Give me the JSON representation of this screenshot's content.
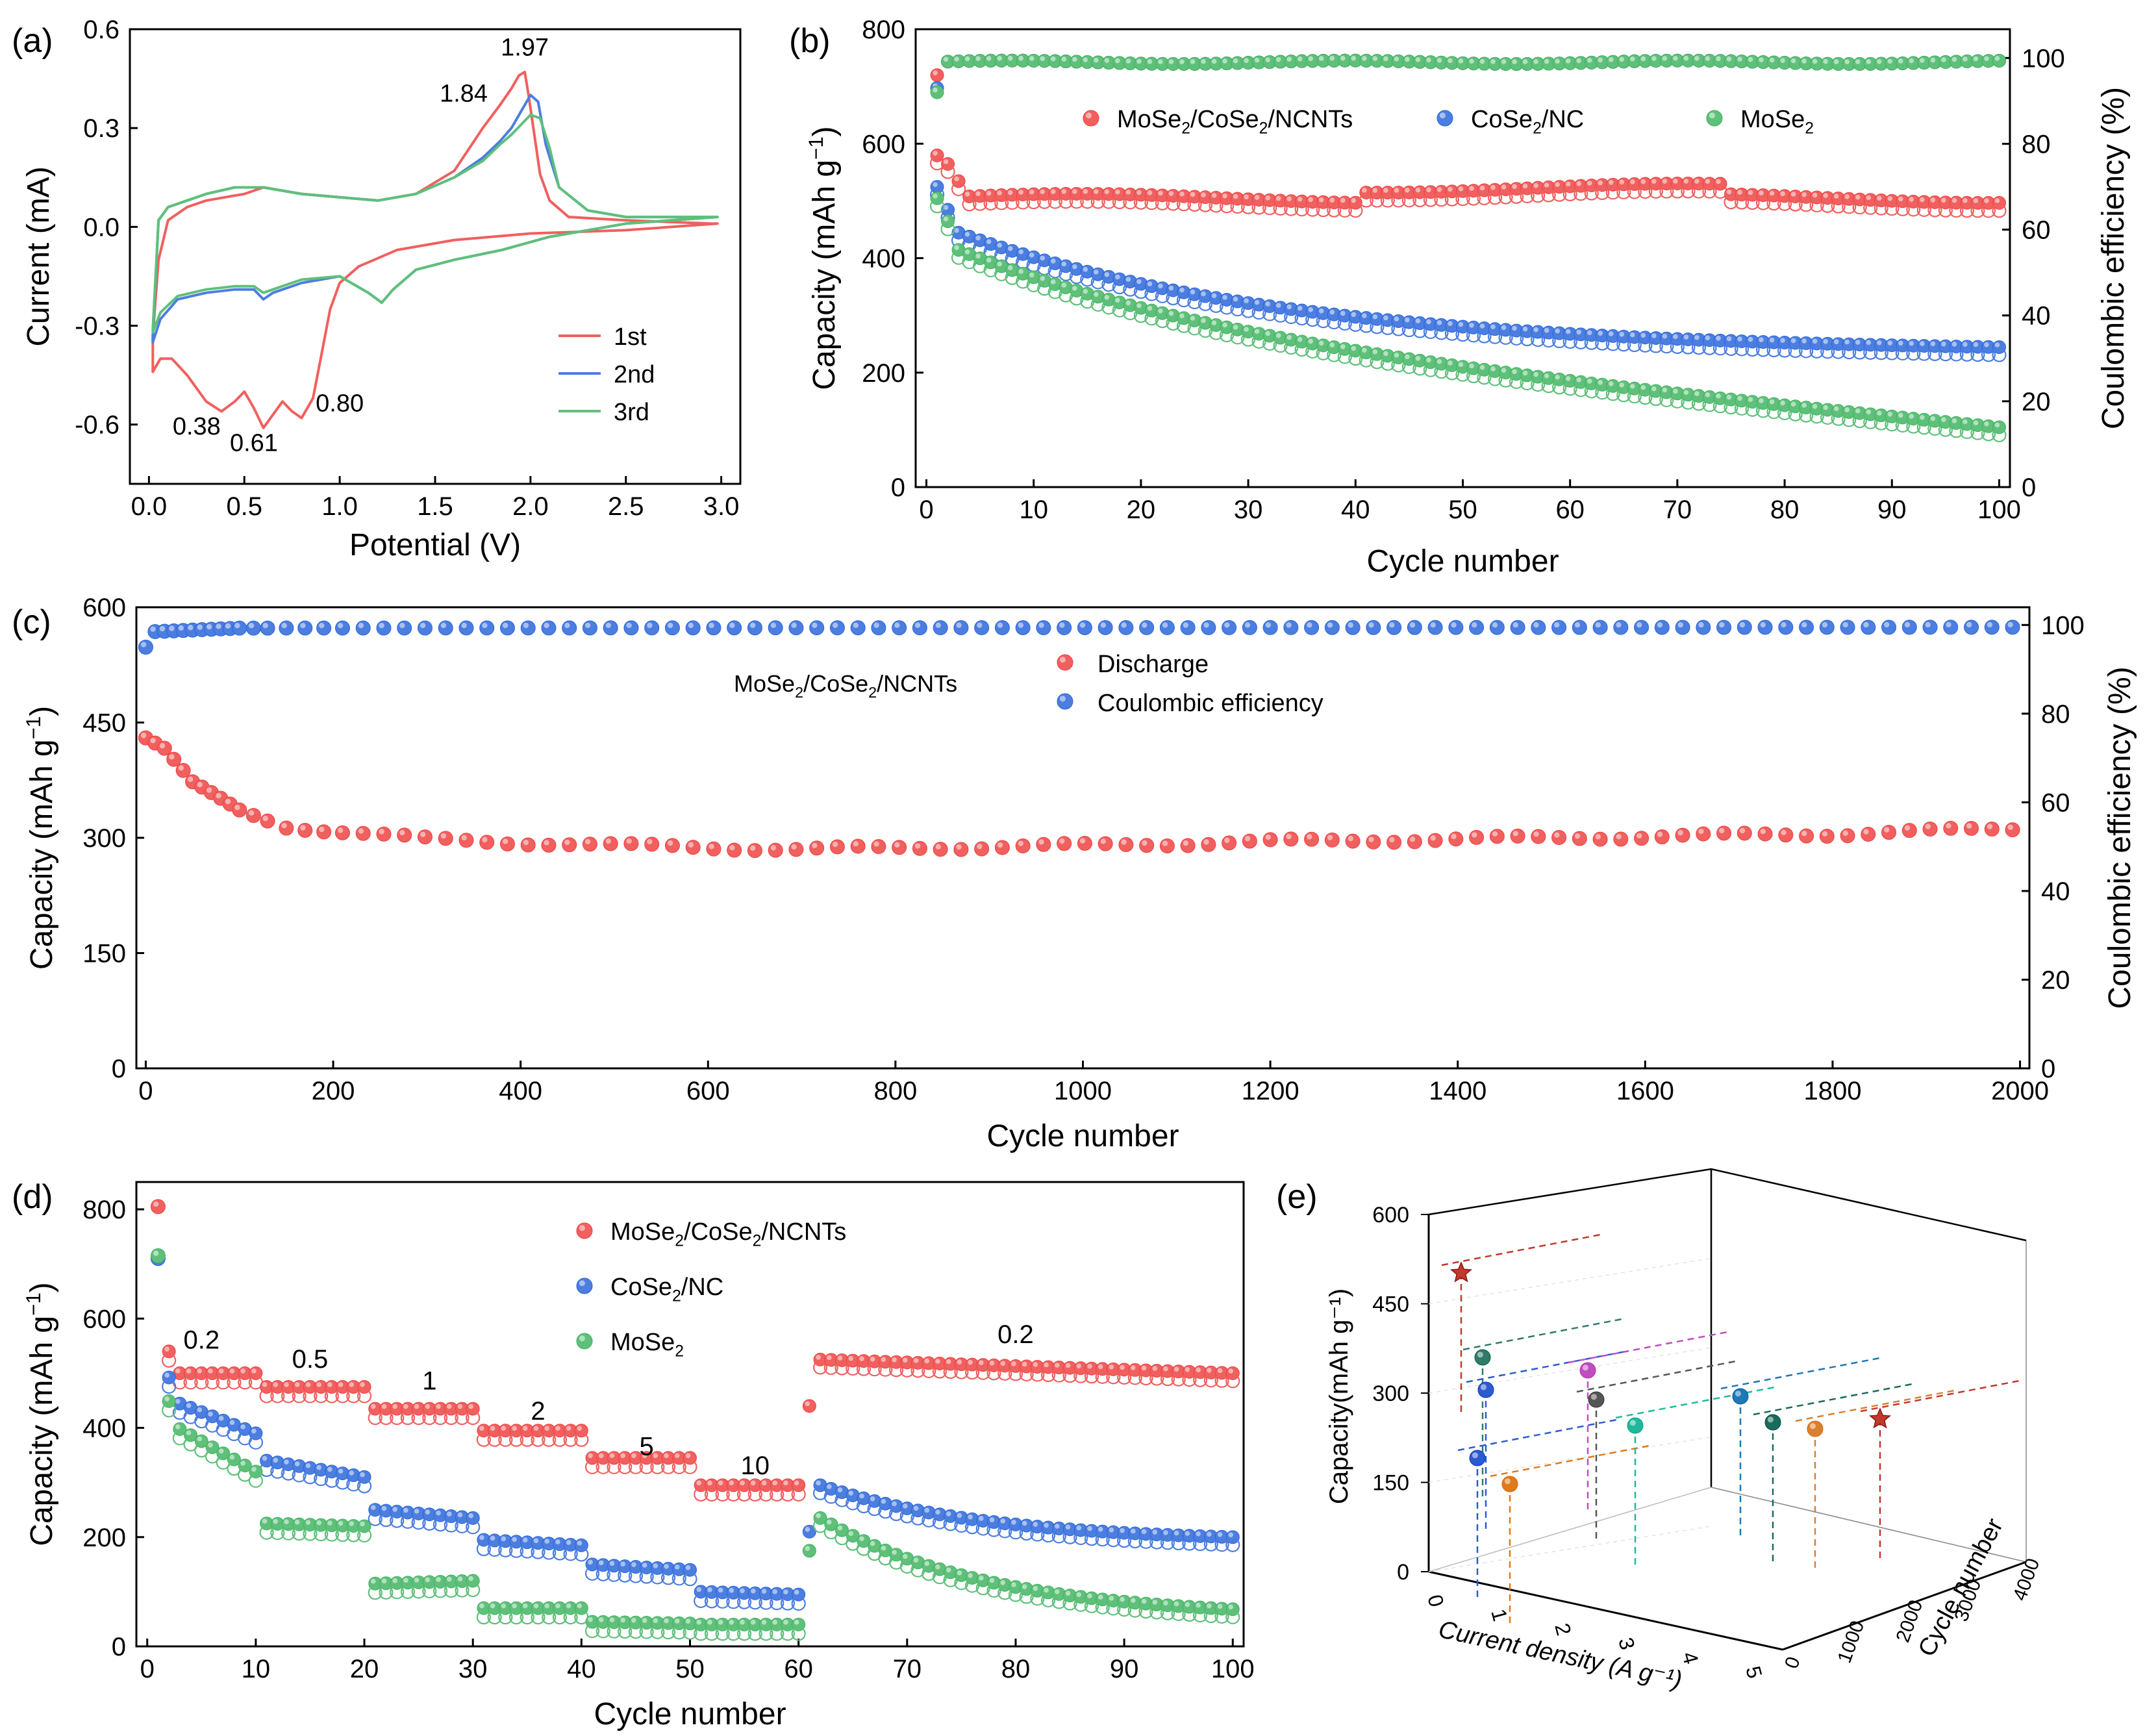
{
  "chart_data": [
    {
      "panel": "(a)",
      "type": "line",
      "xlabel": "Potential (V)",
      "ylabel": "Current (mA)",
      "xlim": [
        -0.1,
        3.1
      ],
      "ylim": [
        -0.78,
        0.6
      ],
      "xticks": [
        "0.0",
        "0.5",
        "1.0",
        "1.5",
        "2.0",
        "2.5",
        "3.0"
      ],
      "yticks": [
        "-0.6",
        "-0.3",
        "0.0",
        "0.3",
        "0.6"
      ],
      "legend_position": "bottom-right",
      "annotations": [
        {
          "text": "1.97",
          "x": 1.97,
          "y": 0.52
        },
        {
          "text": "1.84",
          "x": 1.65,
          "y": 0.38
        },
        {
          "text": "0.38",
          "x": 0.25,
          "y": -0.63
        },
        {
          "text": "0.61",
          "x": 0.55,
          "y": -0.68
        },
        {
          "text": "0.80",
          "x": 1.0,
          "y": -0.56
        }
      ],
      "series": [
        {
          "name": "1st",
          "color": "#f0605f",
          "x": [
            0.02,
            0.06,
            0.12,
            0.2,
            0.3,
            0.38,
            0.45,
            0.5,
            0.55,
            0.6,
            0.65,
            0.7,
            0.75,
            0.8,
            0.86,
            0.9,
            0.95,
            1.0,
            1.1,
            1.3,
            1.6,
            2.0,
            2.5,
            2.98,
            2.95,
            2.5,
            2.2,
            2.1,
            2.05,
            2.02,
            1.99,
            1.97,
            1.94,
            1.9,
            1.84,
            1.75,
            1.6,
            1.4,
            1.2,
            1.0,
            0.8,
            0.6,
            0.5,
            0.4,
            0.3,
            0.2,
            0.1,
            0.05,
            0.02
          ],
          "y": [
            -0.44,
            -0.4,
            -0.4,
            -0.45,
            -0.53,
            -0.56,
            -0.53,
            -0.5,
            -0.55,
            -0.61,
            -0.57,
            -0.53,
            -0.56,
            -0.58,
            -0.52,
            -0.4,
            -0.25,
            -0.17,
            -0.12,
            -0.07,
            -0.04,
            -0.02,
            -0.01,
            0.01,
            0.01,
            0.02,
            0.03,
            0.08,
            0.16,
            0.28,
            0.4,
            0.47,
            0.46,
            0.42,
            0.37,
            0.3,
            0.17,
            0.1,
            0.08,
            0.09,
            0.1,
            0.12,
            0.1,
            0.09,
            0.08,
            0.06,
            0.02,
            -0.1,
            -0.33
          ]
        },
        {
          "name": "2nd",
          "color": "#4c7ee0",
          "x": [
            0.02,
            0.06,
            0.15,
            0.3,
            0.45,
            0.55,
            0.6,
            0.65,
            0.8,
            1.0,
            1.15,
            1.22,
            1.28,
            1.4,
            1.6,
            1.85,
            2.1,
            2.5,
            2.98,
            2.95,
            2.5,
            2.3,
            2.15,
            2.08,
            2.04,
            2.0,
            1.95,
            1.9,
            1.84,
            1.75,
            1.6,
            1.4,
            1.2,
            1.0,
            0.8,
            0.6,
            0.45,
            0.3,
            0.2,
            0.1,
            0.05,
            0.02
          ],
          "y": [
            -0.35,
            -0.28,
            -0.22,
            -0.2,
            -0.19,
            -0.19,
            -0.22,
            -0.2,
            -0.17,
            -0.15,
            -0.2,
            -0.23,
            -0.19,
            -0.13,
            -0.1,
            -0.07,
            -0.03,
            0.01,
            0.03,
            0.03,
            0.03,
            0.05,
            0.12,
            0.25,
            0.38,
            0.4,
            0.35,
            0.3,
            0.26,
            0.21,
            0.15,
            0.1,
            0.08,
            0.09,
            0.1,
            0.12,
            0.12,
            0.1,
            0.08,
            0.06,
            0.02,
            -0.33
          ]
        },
        {
          "name": "3rd",
          "color": "#5fc07a",
          "x": [
            0.02,
            0.06,
            0.15,
            0.3,
            0.45,
            0.55,
            0.6,
            0.65,
            0.8,
            1.0,
            1.15,
            1.22,
            1.28,
            1.4,
            1.6,
            1.85,
            2.1,
            2.5,
            2.98,
            2.95,
            2.5,
            2.3,
            2.15,
            2.1,
            2.05,
            2.0,
            1.95,
            1.9,
            1.84,
            1.75,
            1.6,
            1.4,
            1.2,
            1.0,
            0.8,
            0.6,
            0.45,
            0.3,
            0.2,
            0.1,
            0.05,
            0.02
          ],
          "y": [
            -0.32,
            -0.26,
            -0.21,
            -0.19,
            -0.18,
            -0.18,
            -0.2,
            -0.19,
            -0.16,
            -0.15,
            -0.2,
            -0.23,
            -0.19,
            -0.13,
            -0.1,
            -0.07,
            -0.03,
            0.01,
            0.03,
            0.03,
            0.03,
            0.05,
            0.12,
            0.24,
            0.33,
            0.34,
            0.31,
            0.28,
            0.25,
            0.2,
            0.15,
            0.1,
            0.08,
            0.09,
            0.1,
            0.12,
            0.12,
            0.1,
            0.08,
            0.06,
            0.02,
            -0.31
          ]
        }
      ]
    },
    {
      "panel": "(b)",
      "type": "scatter",
      "xlabel": "Cycle number",
      "ylabel": "Capacity (mAh g⁻¹)",
      "y2label": "Coulombic efficiency (%)",
      "xlim": [
        -1,
        101
      ],
      "ylim": [
        0,
        800
      ],
      "y2lim": [
        0,
        106.7
      ],
      "xticks": [
        "0",
        "10",
        "20",
        "30",
        "40",
        "50",
        "60",
        "70",
        "80",
        "90",
        "100"
      ],
      "yticks": [
        "0",
        "200",
        "400",
        "600",
        "800"
      ],
      "y2ticks": [
        "0",
        "20",
        "40",
        "60",
        "80",
        "100"
      ],
      "legend_position": "top-center",
      "series": [
        {
          "name": "MoSe2/CoSe2/NCNTs",
          "color": "#f0605f",
          "first_cycles": [
            575,
            560,
            530
          ],
          "plateau": 500,
          "end_value": 500,
          "ce_start": 96,
          "ce_plateau": 99
        },
        {
          "name": "CoSe2/NC",
          "color": "#4c7ee0",
          "first_cycles": [
            520,
            480,
            440
          ],
          "plateau": 350,
          "end_value": 240,
          "ce_start": 93,
          "ce_plateau": 99
        },
        {
          "name": "MoSe2",
          "color": "#5fc07a",
          "first_cycles": [
            500,
            460,
            410
          ],
          "plateau": 340,
          "end_value": 100,
          "ce_start": 92,
          "ce_plateau": 99
        }
      ]
    },
    {
      "panel": "(c)",
      "type": "scatter",
      "xlabel": "Cycle number",
      "ylabel": "Capacity (mAh g⁻¹)",
      "y2label": "Coulombic efficiency (%)",
      "xlim": [
        -10,
        2010
      ],
      "ylim": [
        0,
        600
      ],
      "y2lim": [
        0,
        104
      ],
      "xticks": [
        "0",
        "200",
        "400",
        "600",
        "800",
        "1000",
        "1200",
        "1400",
        "1600",
        "1800",
        "2000"
      ],
      "yticks": [
        "0",
        "150",
        "300",
        "450",
        "600"
      ],
      "y2ticks": [
        "0",
        "20",
        "40",
        "60",
        "80",
        "100"
      ],
      "label": "MoSe2/CoSe2/NCNTs",
      "series": [
        {
          "name": "Discharge",
          "color": "#f0605f",
          "curve": [
            [
              0,
              430
            ],
            [
              20,
              415
            ],
            [
              50,
              370
            ],
            [
              100,
              335
            ],
            [
              150,
              315
            ],
            [
              300,
              298
            ],
            [
              500,
              290
            ],
            [
              700,
              285
            ],
            [
              1000,
              290
            ],
            [
              1200,
              295
            ],
            [
              1500,
              300
            ],
            [
              1800,
              305
            ],
            [
              2000,
              312
            ]
          ]
        },
        {
          "name": "Coulombic efficiency",
          "color": "#4c7ee0",
          "curve": [
            [
              0,
              95
            ],
            [
              10,
              98.5
            ],
            [
              100,
              99.3
            ],
            [
              2000,
              99.5
            ]
          ]
        }
      ]
    },
    {
      "panel": "(d)",
      "type": "scatter",
      "xlabel": "Cycle number",
      "ylabel": "Capacity (mAh g⁻¹)",
      "xlim": [
        -1,
        101
      ],
      "ylim": [
        0,
        850
      ],
      "xticks": [
        "0",
        "10",
        "20",
        "30",
        "40",
        "50",
        "60",
        "70",
        "80",
        "90",
        "100"
      ],
      "yticks": [
        "0",
        "200",
        "400",
        "600",
        "800"
      ],
      "rate_labels": [
        "0.2",
        "0.5",
        "1",
        "2",
        "5",
        "10",
        "0.2"
      ],
      "legend_position": "top-center",
      "series": [
        {
          "name": "MoSe2/CoSe2/NCNTs",
          "color": "#f0605f",
          "first": 805,
          "steps": [
            500,
            475,
            435,
            395,
            345,
            295
          ],
          "recovery": [
            525,
            500
          ],
          "sixtyone": 440
        },
        {
          "name": "CoSe2/NC",
          "color": "#4c7ee0",
          "first": 710,
          "steps": [
            [
              460,
              390
            ],
            [
              340,
              310
            ],
            [
              250,
              235
            ],
            [
              195,
              185
            ],
            [
              150,
              140
            ],
            [
              100,
              95
            ]
          ],
          "recovery": [
            295,
            200
          ],
          "sixtyone": 210
        },
        {
          "name": "MoSe2",
          "color": "#5fc07a",
          "first": 715,
          "steps": [
            [
              420,
              320
            ],
            [
              225,
              220
            ],
            [
              115,
              120
            ],
            [
              70,
              70
            ],
            [
              45,
              42
            ],
            [
              40,
              40
            ]
          ],
          "recovery": [
            235,
            68
          ],
          "sixtyone": 175
        }
      ]
    },
    {
      "panel": "(e)",
      "type": "scatter",
      "xlabel": "Current density (A g⁻¹)",
      "ylabel": "Capacity(mAh g⁻¹)",
      "zlabel": "Cycle number",
      "xticks": [
        "0",
        "1",
        "2",
        "3",
        "4",
        "5"
      ],
      "yticks": [
        "0",
        "150",
        "300",
        "450",
        "600"
      ],
      "zticks": [
        "0",
        "1000",
        "2000",
        "3000",
        "4000"
      ],
      "points": [
        {
          "name": "star-1",
          "color": "#c0392b",
          "shape": "star"
        },
        {
          "name": "star-2",
          "color": "#c0392b",
          "shape": "star"
        },
        {
          "name": "ball-teal-dark",
          "color": "#2f7a68"
        },
        {
          "name": "ball-blue-1",
          "color": "#2c5bd0"
        },
        {
          "name": "ball-blue-2",
          "color": "#2c5bd0"
        },
        {
          "name": "ball-orange-1",
          "color": "#e07a1a"
        },
        {
          "name": "ball-magenta",
          "color": "#c04dc0"
        },
        {
          "name": "ball-grey",
          "color": "#555555"
        },
        {
          "name": "ball-cyan",
          "color": "#1fb89a"
        },
        {
          "name": "ball-blue-3",
          "color": "#1f77b4"
        },
        {
          "name": "ball-teal-2",
          "color": "#1b6b5c"
        },
        {
          "name": "ball-orange-2",
          "color": "#d98030"
        }
      ]
    }
  ]
}
